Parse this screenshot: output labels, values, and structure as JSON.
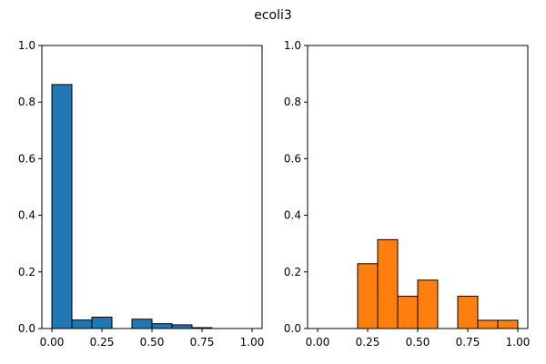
{
  "figure": {
    "title": "ecoli3"
  },
  "chart_data": [
    {
      "type": "bar",
      "color": "#1f77b4",
      "edgecolor": "#000000",
      "xlim": [
        -0.05,
        1.05
      ],
      "ylim": [
        0,
        1.0
      ],
      "xticks": [
        0.0,
        0.25,
        0.5,
        0.75,
        1.0
      ],
      "xtick_labels": [
        "0.00",
        "0.25",
        "0.50",
        "0.75",
        "1.00"
      ],
      "yticks": [
        0.0,
        0.2,
        0.4,
        0.6,
        0.8,
        1.0
      ],
      "ytick_labels": [
        "0.0",
        "0.2",
        "0.4",
        "0.6",
        "0.8",
        "1.0"
      ],
      "bins": [
        {
          "x0": 0.0,
          "x1": 0.1,
          "value": 0.862
        },
        {
          "x0": 0.1,
          "x1": 0.2,
          "value": 0.03
        },
        {
          "x0": 0.2,
          "x1": 0.3,
          "value": 0.04
        },
        {
          "x0": 0.3,
          "x1": 0.4,
          "value": 0.0
        },
        {
          "x0": 0.4,
          "x1": 0.5,
          "value": 0.033
        },
        {
          "x0": 0.5,
          "x1": 0.6,
          "value": 0.017
        },
        {
          "x0": 0.6,
          "x1": 0.7,
          "value": 0.013
        },
        {
          "x0": 0.7,
          "x1": 0.8,
          "value": 0.003
        },
        {
          "x0": 0.8,
          "x1": 0.9,
          "value": 0.0
        },
        {
          "x0": 0.9,
          "x1": 1.0,
          "value": 0.0
        }
      ]
    },
    {
      "type": "bar",
      "color": "#ff7f0e",
      "edgecolor": "#000000",
      "xlim": [
        -0.05,
        1.05
      ],
      "ylim": [
        0,
        1.0
      ],
      "xticks": [
        0.0,
        0.25,
        0.5,
        0.75,
        1.0
      ],
      "xtick_labels": [
        "0.00",
        "0.25",
        "0.50",
        "0.75",
        "1.00"
      ],
      "yticks": [
        0.0,
        0.2,
        0.4,
        0.6,
        0.8,
        1.0
      ],
      "ytick_labels": [
        "0.0",
        "0.2",
        "0.4",
        "0.6",
        "0.8",
        "1.0"
      ],
      "bins": [
        {
          "x0": 0.0,
          "x1": 0.1,
          "value": 0.0
        },
        {
          "x0": 0.1,
          "x1": 0.2,
          "value": 0.0
        },
        {
          "x0": 0.2,
          "x1": 0.3,
          "value": 0.229
        },
        {
          "x0": 0.3,
          "x1": 0.4,
          "value": 0.314
        },
        {
          "x0": 0.4,
          "x1": 0.5,
          "value": 0.114
        },
        {
          "x0": 0.5,
          "x1": 0.6,
          "value": 0.171
        },
        {
          "x0": 0.6,
          "x1": 0.7,
          "value": 0.0
        },
        {
          "x0": 0.7,
          "x1": 0.8,
          "value": 0.114
        },
        {
          "x0": 0.8,
          "x1": 0.9,
          "value": 0.029
        },
        {
          "x0": 0.9,
          "x1": 1.0,
          "value": 0.029
        }
      ]
    }
  ]
}
